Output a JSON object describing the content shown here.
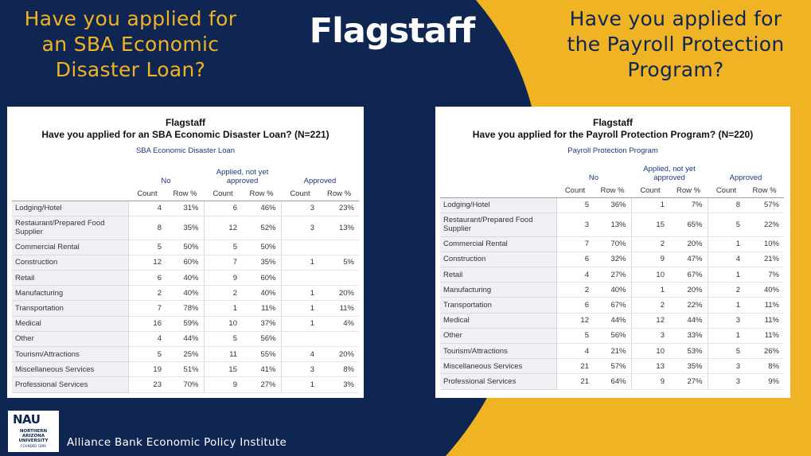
{
  "slide": {
    "title": "Flagstaff",
    "left_question": "Have you applied for an SBA Economic Disaster Loan?",
    "right_question": "Have you applied for the Payroll Protection Program?",
    "footer": "Alliance Bank Economic Policy Institute",
    "logo": {
      "name": "NAU",
      "line1": "NORTHERN",
      "line2": "ARIZONA",
      "line3": "UNIVERSITY",
      "line4": "FOUNDED 1899"
    },
    "colors": {
      "navy": "#0f2653",
      "gold": "#f0b323"
    }
  },
  "left_table": {
    "title": "Flagstaff",
    "subtitle": "Have you applied for an SBA Economic Disaster Loan? (N=221)",
    "variable": "SBA Economic Disaster Loan",
    "groups": [
      "No",
      "Applied, not yet approved",
      "Approved"
    ],
    "sub_headers": [
      "Count",
      "Row %",
      "Count",
      "Row %",
      "Count",
      "Row %"
    ],
    "rows": [
      {
        "label": "Lodging/Hotel",
        "cells": [
          "4",
          "31%",
          "6",
          "46%",
          "3",
          "23%"
        ]
      },
      {
        "label": "Restaurant/Prepared Food Supplier",
        "cells": [
          "8",
          "35%",
          "12",
          "52%",
          "3",
          "13%"
        ]
      },
      {
        "label": "Commercial Rental",
        "cells": [
          "5",
          "50%",
          "5",
          "50%",
          "",
          ""
        ]
      },
      {
        "label": "Construction",
        "cells": [
          "12",
          "60%",
          "7",
          "35%",
          "1",
          "5%"
        ]
      },
      {
        "label": "Retail",
        "cells": [
          "6",
          "40%",
          "9",
          "60%",
          "",
          ""
        ]
      },
      {
        "label": "Manufacturing",
        "cells": [
          "2",
          "40%",
          "2",
          "40%",
          "1",
          "20%"
        ]
      },
      {
        "label": "Transportation",
        "cells": [
          "7",
          "78%",
          "1",
          "11%",
          "1",
          "11%"
        ]
      },
      {
        "label": "Medical",
        "cells": [
          "16",
          "59%",
          "10",
          "37%",
          "1",
          "4%"
        ]
      },
      {
        "label": "Other",
        "cells": [
          "4",
          "44%",
          "5",
          "56%",
          "",
          ""
        ]
      },
      {
        "label": "Tourism/Attractions",
        "cells": [
          "5",
          "25%",
          "11",
          "55%",
          "4",
          "20%"
        ]
      },
      {
        "label": "Miscellaneous Services",
        "cells": [
          "19",
          "51%",
          "15",
          "41%",
          "3",
          "8%"
        ]
      },
      {
        "label": "Professional Services",
        "cells": [
          "23",
          "70%",
          "9",
          "27%",
          "1",
          "3%"
        ]
      }
    ]
  },
  "right_table": {
    "title": "Flagstaff",
    "subtitle": "Have you applied for the Payroll Protection Program? (N=220)",
    "variable": "Payroll Protection Program",
    "groups": [
      "No",
      "Applied, not yet approved",
      "Approved"
    ],
    "sub_headers": [
      "Count",
      "Row %",
      "Count",
      "Row %",
      "Count",
      "Row %"
    ],
    "rows": [
      {
        "label": "Lodging/Hotel",
        "cells": [
          "5",
          "36%",
          "1",
          "7%",
          "8",
          "57%"
        ]
      },
      {
        "label": "Restaurant/Prepared Food Supplier",
        "cells": [
          "3",
          "13%",
          "15",
          "65%",
          "5",
          "22%"
        ]
      },
      {
        "label": "Commercial Rental",
        "cells": [
          "7",
          "70%",
          "2",
          "20%",
          "1",
          "10%"
        ]
      },
      {
        "label": "Construction",
        "cells": [
          "6",
          "32%",
          "9",
          "47%",
          "4",
          "21%"
        ]
      },
      {
        "label": "Retail",
        "cells": [
          "4",
          "27%",
          "10",
          "67%",
          "1",
          "7%"
        ]
      },
      {
        "label": "Manufacturing",
        "cells": [
          "2",
          "40%",
          "1",
          "20%",
          "2",
          "40%"
        ]
      },
      {
        "label": "Transportation",
        "cells": [
          "6",
          "67%",
          "2",
          "22%",
          "1",
          "11%"
        ]
      },
      {
        "label": "Medical",
        "cells": [
          "12",
          "44%",
          "12",
          "44%",
          "3",
          "11%"
        ]
      },
      {
        "label": "Other",
        "cells": [
          "5",
          "56%",
          "3",
          "33%",
          "1",
          "11%"
        ]
      },
      {
        "label": "Tourism/Attractions",
        "cells": [
          "4",
          "21%",
          "10",
          "53%",
          "5",
          "26%"
        ]
      },
      {
        "label": "Miscellaneous Services",
        "cells": [
          "21",
          "57%",
          "13",
          "35%",
          "3",
          "8%"
        ]
      },
      {
        "label": "Professional Services",
        "cells": [
          "21",
          "64%",
          "9",
          "27%",
          "3",
          "9%"
        ]
      }
    ]
  }
}
